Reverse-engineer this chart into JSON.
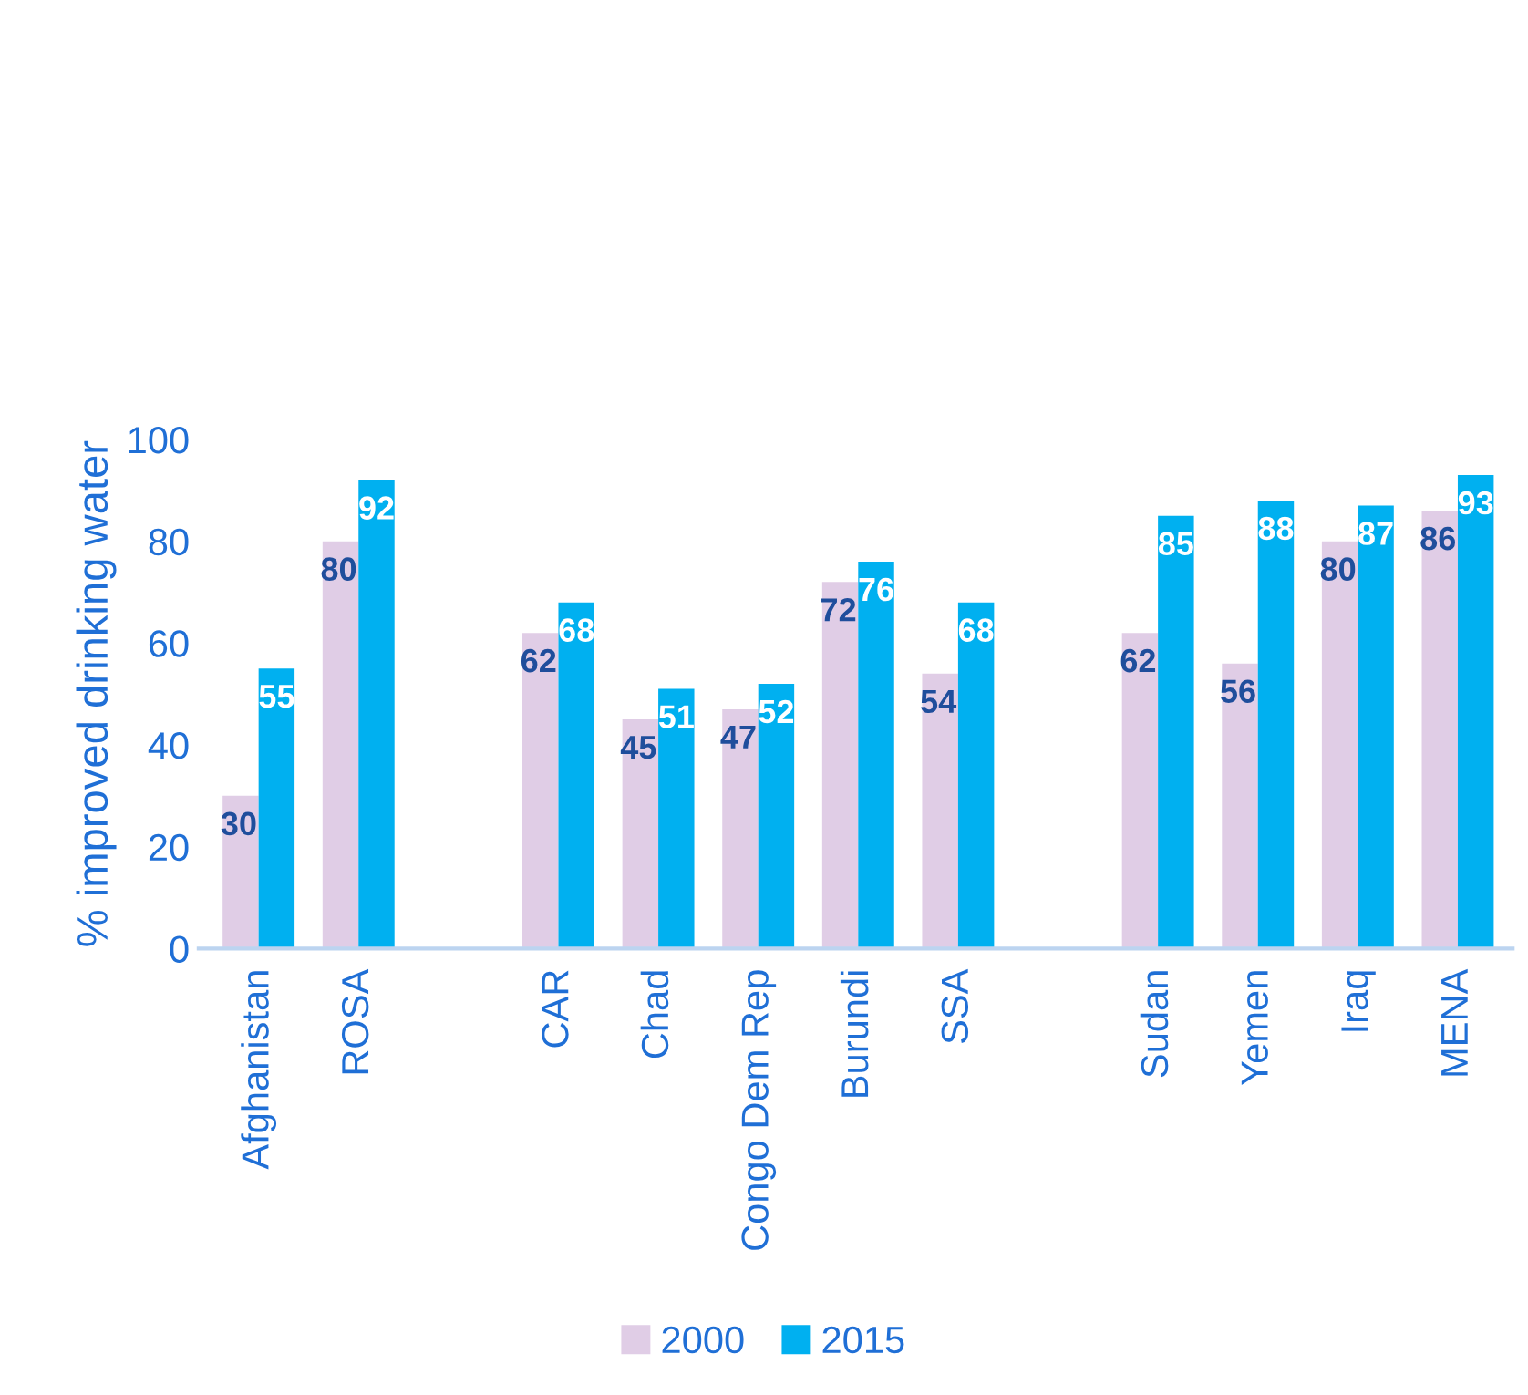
{
  "chart_data": {
    "type": "bar",
    "ylabel": "% improved drinking water",
    "categories": [
      "Afghanistan",
      "ROSA",
      null,
      "CAR",
      "Chad",
      "Congo Dem Rep",
      "Burundi",
      "SSA",
      null,
      "Sudan",
      "Yemen",
      "Iraq",
      "MENA"
    ],
    "series": [
      {
        "name": "2000",
        "color": "#e0cde6",
        "values": [
          30,
          80,
          null,
          62,
          45,
          47,
          72,
          54,
          null,
          62,
          56,
          80,
          86
        ]
      },
      {
        "name": "2015",
        "color": "#00b0f0",
        "values": [
          55,
          92,
          null,
          68,
          51,
          52,
          76,
          68,
          null,
          85,
          88,
          87,
          93
        ]
      }
    ],
    "ylim": [
      0,
      100
    ],
    "yticks": [
      0,
      20,
      40,
      60,
      80,
      100
    ],
    "data_labels": true,
    "grid": false,
    "legend": "bottom"
  }
}
